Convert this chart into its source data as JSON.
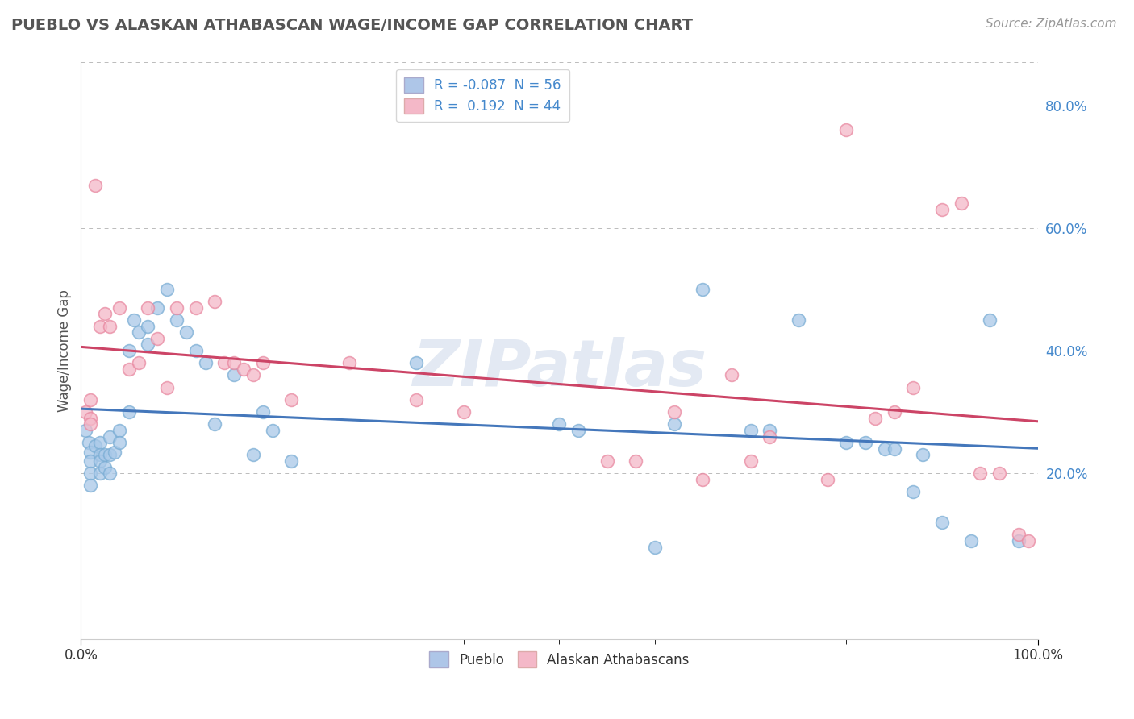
{
  "title": "PUEBLO VS ALASKAN ATHABASCAN WAGE/INCOME GAP CORRELATION CHART",
  "source_text": "Source: ZipAtlas.com",
  "ylabel": "Wage/Income Gap",
  "watermark": "ZIPatlas",
  "legend_top": [
    {
      "label": "R = -0.087  N = 56",
      "color": "#aec6e8"
    },
    {
      "label": "R =  0.192  N = 44",
      "color": "#f4b8c8"
    }
  ],
  "legend_bottom": [
    "Pueblo",
    "Alaskan Athabascans"
  ],
  "xlim": [
    0.0,
    1.0
  ],
  "ylim": [
    -0.07,
    0.87
  ],
  "blue_scatter_color": "#a8c8e8",
  "blue_scatter_edge": "#7aadd4",
  "pink_scatter_color": "#f4b8c8",
  "pink_scatter_edge": "#e888a0",
  "blue_line_color": "#4477bb",
  "pink_line_color": "#cc4466",
  "ytick_vals": [
    0.2,
    0.4,
    0.6,
    0.8
  ],
  "ytick_labels": [
    "20.0%",
    "40.0%",
    "60.0%",
    "80.0%"
  ],
  "pueblo_x": [
    0.005,
    0.008,
    0.01,
    0.01,
    0.01,
    0.01,
    0.015,
    0.02,
    0.02,
    0.02,
    0.02,
    0.025,
    0.025,
    0.03,
    0.03,
    0.03,
    0.035,
    0.04,
    0.04,
    0.05,
    0.05,
    0.055,
    0.06,
    0.07,
    0.07,
    0.08,
    0.09,
    0.1,
    0.11,
    0.12,
    0.13,
    0.14,
    0.16,
    0.18,
    0.19,
    0.2,
    0.22,
    0.35,
    0.5,
    0.52,
    0.6,
    0.62,
    0.65,
    0.7,
    0.72,
    0.75,
    0.8,
    0.82,
    0.84,
    0.85,
    0.87,
    0.88,
    0.9,
    0.93,
    0.95,
    0.98
  ],
  "pueblo_y": [
    0.27,
    0.25,
    0.235,
    0.22,
    0.2,
    0.18,
    0.245,
    0.25,
    0.23,
    0.22,
    0.2,
    0.23,
    0.21,
    0.26,
    0.23,
    0.2,
    0.235,
    0.27,
    0.25,
    0.4,
    0.3,
    0.45,
    0.43,
    0.44,
    0.41,
    0.47,
    0.5,
    0.45,
    0.43,
    0.4,
    0.38,
    0.28,
    0.36,
    0.23,
    0.3,
    0.27,
    0.22,
    0.38,
    0.28,
    0.27,
    0.08,
    0.28,
    0.5,
    0.27,
    0.27,
    0.45,
    0.25,
    0.25,
    0.24,
    0.24,
    0.17,
    0.23,
    0.12,
    0.09,
    0.45,
    0.09
  ],
  "athabascan_x": [
    0.005,
    0.01,
    0.01,
    0.01,
    0.015,
    0.02,
    0.025,
    0.03,
    0.04,
    0.05,
    0.06,
    0.07,
    0.08,
    0.09,
    0.1,
    0.12,
    0.14,
    0.15,
    0.16,
    0.17,
    0.18,
    0.19,
    0.22,
    0.28,
    0.35,
    0.4,
    0.55,
    0.58,
    0.62,
    0.65,
    0.68,
    0.7,
    0.72,
    0.78,
    0.8,
    0.83,
    0.85,
    0.87,
    0.9,
    0.92,
    0.94,
    0.96,
    0.98,
    0.99
  ],
  "athabascan_y": [
    0.3,
    0.29,
    0.32,
    0.28,
    0.67,
    0.44,
    0.46,
    0.44,
    0.47,
    0.37,
    0.38,
    0.47,
    0.42,
    0.34,
    0.47,
    0.47,
    0.48,
    0.38,
    0.38,
    0.37,
    0.36,
    0.38,
    0.32,
    0.38,
    0.32,
    0.3,
    0.22,
    0.22,
    0.3,
    0.19,
    0.36,
    0.22,
    0.26,
    0.19,
    0.76,
    0.29,
    0.3,
    0.34,
    0.63,
    0.64,
    0.2,
    0.2,
    0.1,
    0.09
  ]
}
